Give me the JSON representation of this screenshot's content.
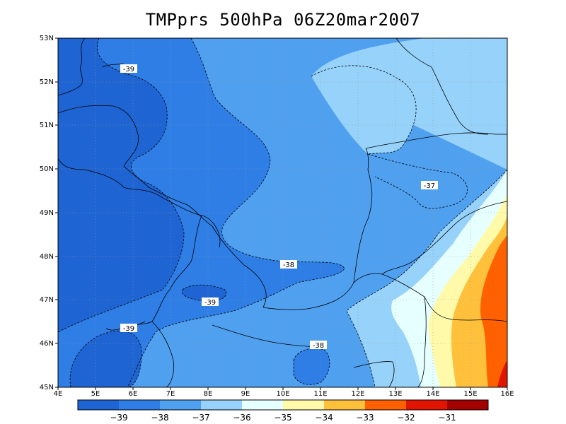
{
  "title": "TMPprs 500hPa 06Z20mar2007",
  "map": {
    "x_ticks": [
      "4E",
      "5E",
      "6E",
      "7E",
      "8E",
      "9E",
      "10E",
      "11E",
      "12E",
      "13E",
      "14E",
      "15E",
      "16E"
    ],
    "y_ticks": [
      "45N",
      "46N",
      "47N",
      "48N",
      "49N",
      "50N",
      "51N",
      "52N",
      "53N"
    ],
    "contour_labels": [
      "-39",
      "-39",
      "-39",
      "-38",
      "-38",
      "-37"
    ]
  },
  "colorbar": {
    "labels": [
      "−39",
      "−38",
      "−37",
      "−36",
      "−35",
      "−34",
      "−33",
      "−32",
      "−31"
    ],
    "colors": [
      "#1e64d2",
      "#2e7ee6",
      "#50a0f0",
      "#96d2fa",
      "#e6ffff",
      "#fffaaa",
      "#ffc03c",
      "#ff6000",
      "#e11400",
      "#a50000"
    ]
  }
}
